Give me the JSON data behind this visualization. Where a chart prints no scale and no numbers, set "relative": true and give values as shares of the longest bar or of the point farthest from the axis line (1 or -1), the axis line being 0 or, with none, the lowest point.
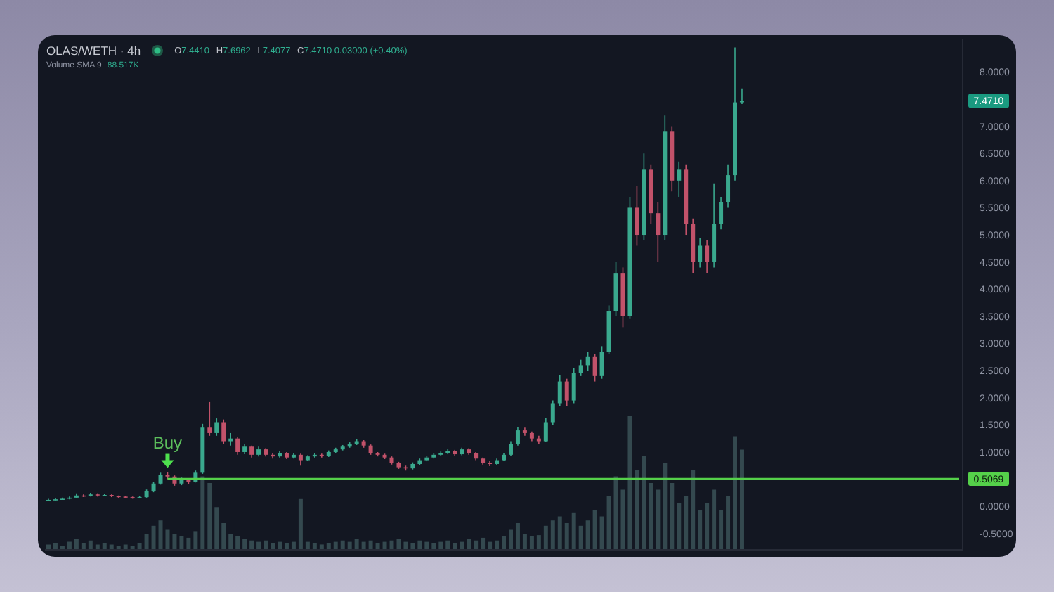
{
  "chart_data": [
    {
      "type": "candlestick",
      "title": "OLAS/WETH · 4h",
      "subtitle": "O7.4410 H7.6962 L7.4077 C7.4710 0.03000 (+0.40%)",
      "categories": [
        null,
        null,
        null,
        null,
        null,
        null,
        null,
        null,
        null,
        null,
        null,
        null,
        null,
        null,
        null,
        null,
        null,
        null,
        null,
        null,
        null,
        null,
        null,
        null,
        null,
        null,
        null,
        null,
        null,
        null,
        null,
        null,
        null,
        null,
        null,
        null,
        null,
        null,
        null,
        null,
        null,
        null,
        null,
        null,
        null,
        null,
        null,
        null,
        null,
        null,
        null,
        null,
        null,
        null,
        null,
        null,
        null,
        null,
        null,
        null,
        null,
        null,
        null,
        null,
        null,
        null,
        null,
        null,
        null,
        null,
        null,
        null,
        null,
        null,
        null,
        null,
        null,
        null,
        null,
        null,
        null,
        null,
        null,
        null,
        null,
        null,
        null,
        null,
        null,
        null,
        null,
        null,
        null,
        null,
        null,
        null,
        null,
        null,
        null,
        null,
        null,
        null,
        null,
        null,
        null,
        null,
        null,
        null,
        null,
        null,
        null,
        null,
        null,
        null,
        null,
        null,
        null,
        null,
        null,
        null,
        null,
        null,
        null,
        null,
        null,
        null,
        null,
        null,
        null,
        null,
        null
      ],
      "ohlc": [
        [
          0.11,
          0.14,
          0.1,
          0.12
        ],
        [
          0.12,
          0.15,
          0.11,
          0.13
        ],
        [
          0.13,
          0.16,
          0.12,
          0.14
        ],
        [
          0.14,
          0.18,
          0.13,
          0.16
        ],
        [
          0.16,
          0.24,
          0.15,
          0.2
        ],
        [
          0.2,
          0.22,
          0.17,
          0.19
        ],
        [
          0.19,
          0.25,
          0.18,
          0.22
        ],
        [
          0.22,
          0.24,
          0.18,
          0.2
        ],
        [
          0.2,
          0.23,
          0.19,
          0.21
        ],
        [
          0.21,
          0.22,
          0.17,
          0.19
        ],
        [
          0.19,
          0.2,
          0.16,
          0.18
        ],
        [
          0.18,
          0.19,
          0.15,
          0.17
        ],
        [
          0.17,
          0.18,
          0.14,
          0.16
        ],
        [
          0.16,
          0.19,
          0.15,
          0.17
        ],
        [
          0.17,
          0.31,
          0.16,
          0.28
        ],
        [
          0.28,
          0.45,
          0.26,
          0.42
        ],
        [
          0.42,
          0.62,
          0.4,
          0.58
        ],
        [
          0.58,
          0.63,
          0.5,
          0.55
        ],
        [
          0.55,
          0.57,
          0.38,
          0.42
        ],
        [
          0.42,
          0.53,
          0.39,
          0.5
        ],
        [
          0.5,
          0.52,
          0.41,
          0.45
        ],
        [
          0.45,
          0.66,
          0.44,
          0.62
        ],
        [
          0.62,
          1.52,
          0.6,
          1.45
        ],
        [
          1.45,
          1.92,
          1.3,
          1.35
        ],
        [
          1.35,
          1.62,
          1.3,
          1.55
        ],
        [
          1.55,
          1.6,
          1.15,
          1.2
        ],
        [
          1.2,
          1.35,
          1.12,
          1.25
        ],
        [
          1.25,
          1.28,
          0.95,
          1.0
        ],
        [
          1.0,
          1.15,
          0.96,
          1.1
        ],
        [
          1.1,
          1.12,
          0.9,
          0.95
        ],
        [
          0.95,
          1.1,
          0.92,
          1.05
        ],
        [
          1.05,
          1.07,
          0.92,
          0.95
        ],
        [
          0.95,
          0.98,
          0.88,
          0.92
        ],
        [
          0.92,
          1.02,
          0.9,
          0.98
        ],
        [
          0.98,
          1.0,
          0.87,
          0.9
        ],
        [
          0.9,
          0.98,
          0.88,
          0.95
        ],
        [
          0.95,
          0.97,
          0.75,
          0.85
        ],
        [
          0.85,
          0.94,
          0.83,
          0.92
        ],
        [
          0.92,
          0.98,
          0.9,
          0.95
        ],
        [
          0.95,
          0.97,
          0.9,
          0.93
        ],
        [
          0.93,
          1.03,
          0.91,
          1.0
        ],
        [
          1.0,
          1.08,
          0.98,
          1.05
        ],
        [
          1.05,
          1.13,
          1.03,
          1.1
        ],
        [
          1.1,
          1.18,
          1.08,
          1.15
        ],
        [
          1.15,
          1.24,
          1.13,
          1.2
        ],
        [
          1.2,
          1.22,
          1.08,
          1.12
        ],
        [
          1.12,
          1.14,
          0.95,
          0.98
        ],
        [
          0.98,
          1.0,
          0.92,
          0.95
        ],
        [
          0.95,
          0.97,
          0.87,
          0.9
        ],
        [
          0.9,
          0.92,
          0.77,
          0.8
        ],
        [
          0.8,
          0.82,
          0.69,
          0.72
        ],
        [
          0.72,
          0.75,
          0.66,
          0.7
        ],
        [
          0.7,
          0.81,
          0.68,
          0.78
        ],
        [
          0.78,
          0.88,
          0.76,
          0.85
        ],
        [
          0.85,
          0.93,
          0.83,
          0.9
        ],
        [
          0.9,
          0.98,
          0.88,
          0.95
        ],
        [
          0.95,
          1.01,
          0.93,
          0.98
        ],
        [
          0.98,
          1.06,
          0.96,
          1.02
        ],
        [
          1.02,
          1.04,
          0.93,
          0.96
        ],
        [
          0.96,
          1.08,
          0.94,
          1.05
        ],
        [
          1.05,
          1.07,
          0.95,
          0.98
        ],
        [
          0.98,
          1.0,
          0.85,
          0.88
        ],
        [
          0.88,
          0.9,
          0.77,
          0.8
        ],
        [
          0.8,
          0.83,
          0.74,
          0.78
        ],
        [
          0.78,
          0.88,
          0.76,
          0.85
        ],
        [
          0.85,
          0.98,
          0.83,
          0.95
        ],
        [
          0.95,
          1.2,
          0.93,
          1.15
        ],
        [
          1.15,
          1.46,
          1.12,
          1.4
        ],
        [
          1.4,
          1.45,
          1.3,
          1.35
        ],
        [
          1.35,
          1.38,
          1.2,
          1.25
        ],
        [
          1.25,
          1.3,
          1.15,
          1.2
        ],
        [
          1.2,
          1.62,
          1.18,
          1.55
        ],
        [
          1.55,
          1.95,
          1.5,
          1.9
        ],
        [
          1.9,
          2.42,
          1.85,
          2.3
        ],
        [
          2.3,
          2.35,
          1.85,
          1.95
        ],
        [
          1.95,
          2.55,
          1.9,
          2.45
        ],
        [
          2.45,
          2.7,
          2.4,
          2.6
        ],
        [
          2.6,
          2.85,
          2.5,
          2.75
        ],
        [
          2.75,
          2.8,
          2.3,
          2.4
        ],
        [
          2.4,
          2.95,
          2.35,
          2.85
        ],
        [
          2.85,
          3.7,
          2.8,
          3.6
        ],
        [
          3.6,
          4.5,
          3.5,
          4.3
        ],
        [
          4.3,
          4.4,
          3.3,
          3.5
        ],
        [
          3.5,
          5.7,
          3.45,
          5.5
        ],
        [
          5.5,
          5.9,
          4.8,
          5.0
        ],
        [
          5.0,
          6.5,
          4.9,
          6.2
        ],
        [
          6.2,
          6.3,
          5.2,
          5.4
        ],
        [
          5.4,
          5.6,
          4.5,
          5.0
        ],
        [
          5.0,
          7.2,
          4.9,
          6.9
        ],
        [
          6.9,
          7.0,
          5.8,
          6.0
        ],
        [
          6.0,
          6.35,
          5.7,
          6.2
        ],
        [
          6.2,
          6.3,
          5.0,
          5.2
        ],
        [
          5.2,
          5.3,
          4.3,
          4.5
        ],
        [
          4.5,
          4.95,
          4.4,
          4.8
        ],
        [
          4.8,
          4.9,
          4.3,
          4.5
        ],
        [
          4.5,
          5.95,
          4.4,
          5.2
        ],
        [
          5.2,
          5.7,
          5.1,
          5.6
        ],
        [
          5.6,
          6.3,
          5.5,
          6.1
        ],
        [
          6.1,
          8.45,
          6.0,
          7.44
        ],
        [
          7.441,
          7.6962,
          7.4077,
          7.471
        ],
        null,
        null,
        null,
        null,
        null,
        null,
        null,
        null,
        null,
        null,
        null,
        null,
        null,
        null,
        null,
        null,
        null,
        null,
        null,
        null,
        null,
        null,
        null,
        null,
        null,
        null,
        null,
        null,
        null,
        null,
        null
      ],
      "colors": [
        "#3aa98e",
        "#3aa98e",
        "#3aa98e",
        "#3aa98e",
        "#3aa98e",
        "#c2526a",
        "#3aa98e",
        "#c2526a",
        "#3aa98e",
        "#c2526a",
        "#c2526a",
        "#c2526a",
        "#c2526a",
        "#3aa98e",
        "#3aa98e",
        "#3aa98e",
        "#3aa98e",
        "#c2526a",
        "#c2526a",
        "#3aa98e",
        "#c2526a",
        "#3aa98e",
        "#3aa98e",
        "#c2526a",
        "#3aa98e",
        "#c2526a",
        "#3aa98e",
        "#c2526a",
        "#3aa98e",
        "#c2526a",
        "#3aa98e",
        "#c2526a",
        "#c2526a",
        "#3aa98e",
        "#c2526a",
        "#3aa98e",
        "#c2526a",
        "#3aa98e",
        "#3aa98e",
        "#c2526a",
        "#3aa98e",
        "#3aa98e",
        "#3aa98e",
        "#3aa98e",
        "#3aa98e",
        "#c2526a",
        "#c2526a",
        "#c2526a",
        "#c2526a",
        "#c2526a",
        "#c2526a",
        "#c2526a",
        "#3aa98e",
        "#3aa98e",
        "#3aa98e",
        "#3aa98e",
        "#3aa98e",
        "#3aa98e",
        "#c2526a",
        "#3aa98e",
        "#c2526a",
        "#c2526a",
        "#c2526a",
        "#c2526a",
        "#3aa98e",
        "#3aa98e",
        "#3aa98e",
        "#3aa98e",
        "#c2526a",
        "#c2526a",
        "#c2526a",
        "#3aa98e",
        "#3aa98e",
        "#3aa98e",
        "#c2526a",
        "#3aa98e",
        "#3aa98e",
        "#3aa98e",
        "#c2526a",
        "#3aa98e",
        "#3aa98e",
        "#3aa98e",
        "#c2526a",
        "#3aa98e",
        "#c2526a",
        "#3aa98e",
        "#c2526a",
        "#c2526a",
        "#3aa98e",
        "#c2526a",
        "#3aa98e",
        "#c2526a",
        "#c2526a",
        "#3aa98e",
        "#c2526a",
        "#3aa98e",
        "#3aa98e",
        "#3aa98e",
        "#3aa98e",
        "#3aa98e",
        null,
        null,
        null,
        null,
        null,
        null,
        null,
        null,
        null,
        null,
        null,
        null,
        null,
        null,
        null,
        null,
        null,
        null,
        null,
        null,
        null,
        null,
        null,
        null,
        null,
        null,
        null,
        null,
        null,
        null,
        null
      ],
      "ylim": [
        -0.8,
        8.6
      ],
      "yticks": [
        {
          "value": -0.5,
          "label": "-0.5000"
        },
        {
          "value": 0,
          "label": "0.0000"
        },
        {
          "value": 1,
          "label": "1.0000"
        },
        {
          "value": 1.5,
          "label": "1.5000"
        },
        {
          "value": 2,
          "label": "2.0000"
        },
        {
          "value": 2.5,
          "label": "2.5000"
        },
        {
          "value": 3,
          "label": "3.0000"
        },
        {
          "value": 3.5,
          "label": "3.5000"
        },
        {
          "value": 4,
          "label": "4.0000"
        },
        {
          "value": 4.5,
          "label": "4.5000"
        },
        {
          "value": 5,
          "label": "5.0000"
        },
        {
          "value": 5.5,
          "label": "5.5000"
        },
        {
          "value": 6,
          "label": "6.0000"
        },
        {
          "value": 6.5,
          "label": "6.5000"
        },
        {
          "value": 7,
          "label": "7.0000"
        },
        {
          "value": 8,
          "label": "8.0000"
        }
      ],
      "tick_labels": "y",
      "ref_lines": [
        {
          "axis": "y",
          "value": 0.5069,
          "label": "0.5069",
          "color": "#55d14a"
        }
      ],
      "annotations": [
        "Buy",
        "7.4710"
      ]
    },
    {
      "type": "bar",
      "relative": true,
      "tick_labels": false,
      "color": "#34494f",
      "categories": [
        null,
        null,
        null,
        null,
        null,
        null,
        null,
        null,
        null,
        null,
        null,
        null,
        null,
        null,
        null,
        null,
        null,
        null,
        null,
        null,
        null,
        null,
        null,
        null,
        null,
        null,
        null,
        null,
        null,
        null,
        null,
        null,
        null,
        null,
        null,
        null,
        null,
        null,
        null,
        null,
        null,
        null,
        null,
        null,
        null,
        null,
        null,
        null,
        null,
        null,
        null,
        null,
        null,
        null,
        null,
        null,
        null,
        null,
        null,
        null,
        null,
        null,
        null,
        null,
        null,
        null,
        null,
        null,
        null,
        null,
        null,
        null,
        null,
        null,
        null,
        null,
        null,
        null,
        null,
        null,
        null,
        null,
        null,
        null,
        null,
        null,
        null,
        null,
        null,
        null,
        null,
        null,
        null,
        null,
        null,
        null,
        null,
        null,
        null,
        null,
        null,
        null,
        null,
        null,
        null,
        null,
        null,
        null,
        null,
        null,
        null,
        null,
        null,
        null,
        null,
        null,
        null,
        null,
        null,
        null,
        null,
        null,
        null,
        null,
        null,
        null,
        null,
        null,
        null,
        null,
        null
      ],
      "values": [
        0.04,
        0.05,
        0.03,
        0.06,
        0.08,
        0.05,
        0.07,
        0.04,
        0.05,
        0.04,
        0.03,
        0.04,
        0.03,
        0.05,
        0.12,
        0.18,
        0.22,
        0.15,
        0.12,
        0.1,
        0.09,
        0.14,
        0.55,
        0.5,
        0.32,
        0.2,
        0.12,
        0.1,
        0.08,
        0.07,
        0.06,
        0.07,
        0.05,
        0.06,
        0.05,
        0.06,
        0.38,
        0.06,
        0.05,
        0.04,
        0.05,
        0.06,
        0.07,
        0.06,
        0.08,
        0.06,
        0.07,
        0.05,
        0.06,
        0.07,
        0.08,
        0.06,
        0.05,
        0.07,
        0.06,
        0.05,
        0.06,
        0.07,
        0.05,
        0.06,
        0.08,
        0.07,
        0.09,
        0.06,
        0.07,
        0.1,
        0.15,
        0.2,
        0.12,
        0.1,
        0.11,
        0.18,
        0.22,
        0.25,
        0.2,
        0.28,
        0.18,
        0.22,
        0.3,
        0.25,
        0.4,
        0.55,
        0.45,
        1.0,
        0.6,
        0.7,
        0.5,
        0.45,
        0.65,
        0.5,
        0.35,
        0.4,
        0.6,
        0.3,
        0.35,
        0.45,
        0.3,
        0.4,
        0.85,
        0.75,
        null,
        null,
        null,
        null,
        null,
        null,
        null,
        null,
        null,
        null,
        null,
        null,
        null,
        null,
        null,
        null,
        null,
        null,
        null,
        null,
        null,
        null,
        null,
        null,
        null,
        null,
        null,
        null,
        null,
        null,
        null
      ],
      "annotations": [
        "Volume SMA 9",
        "88.517K"
      ]
    }
  ]
}
